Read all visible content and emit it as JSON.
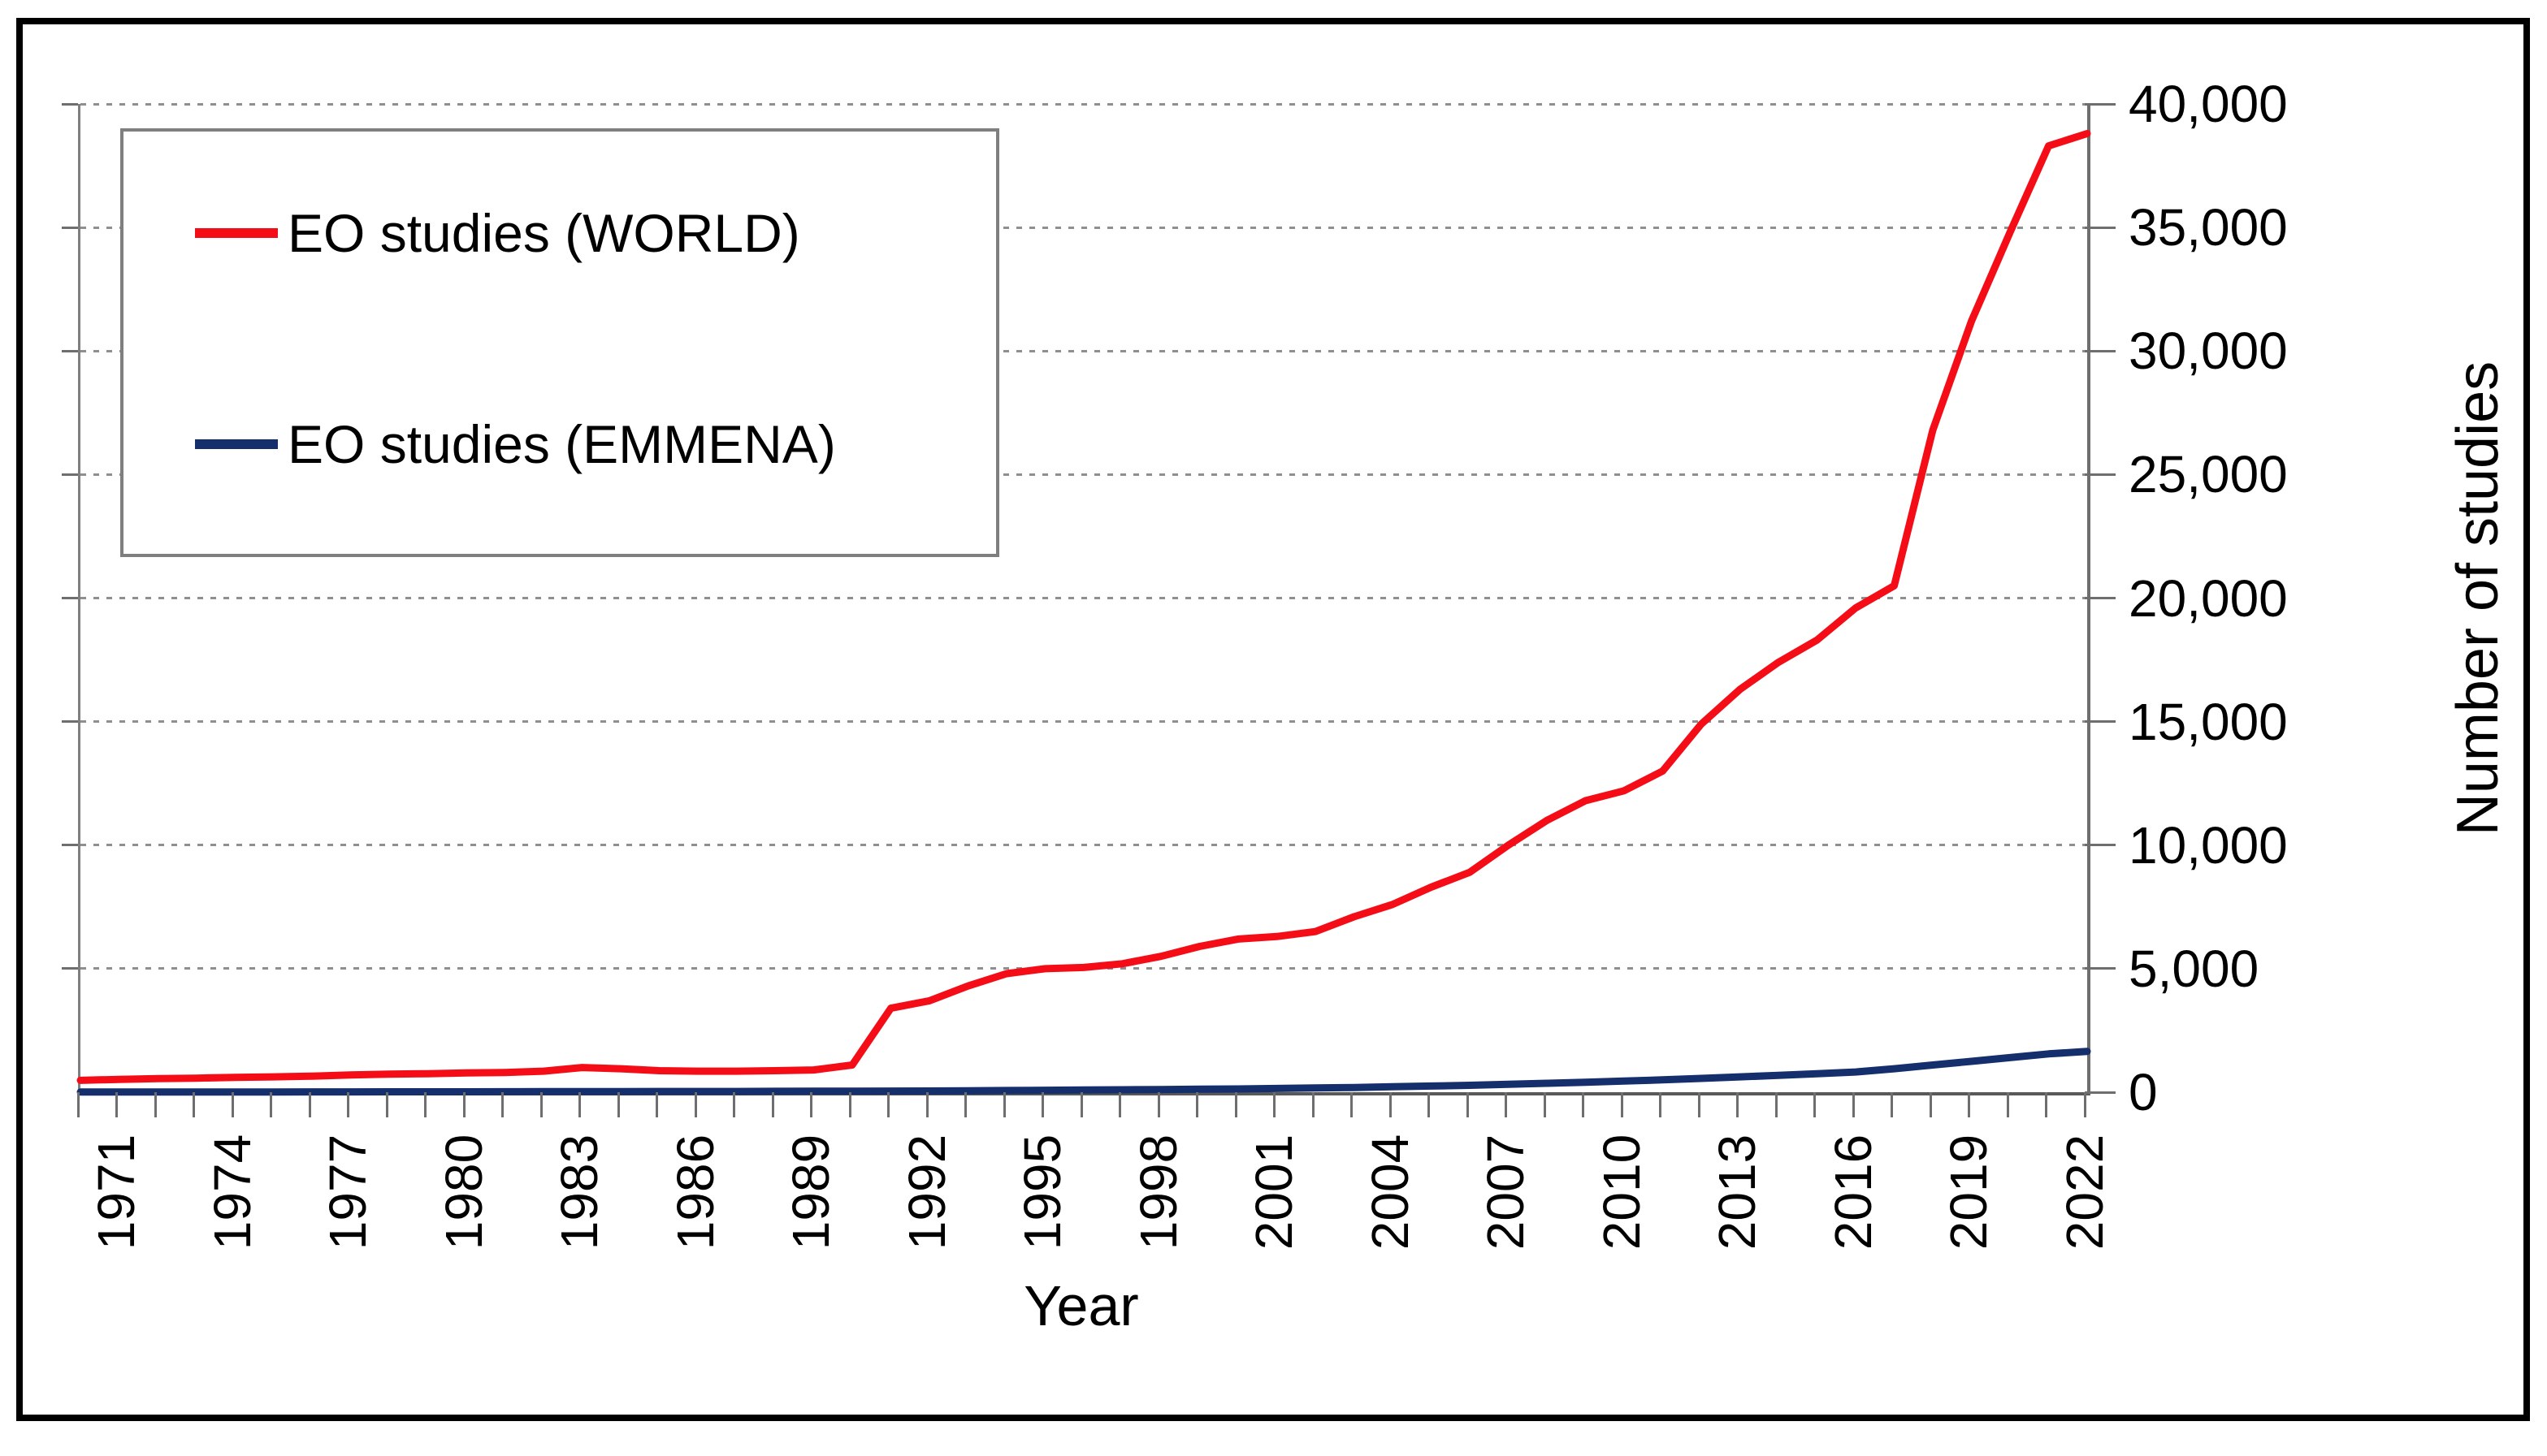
{
  "figure": {
    "background_color": "#ffffff",
    "frame_color": "#000000",
    "plot_border_color": "#7f7f7f",
    "axis_color": "#595959",
    "grid_color": "#8f8f8f",
    "legend": {
      "position": "top-left",
      "border_color": "#7f7f7f",
      "items": [
        {
          "label": "EO studies (WORLD)",
          "color": "#f40d17"
        },
        {
          "label": "EO studies (EMMENA)",
          "color": "#142f6b"
        }
      ]
    }
  },
  "chart_data": {
    "type": "line",
    "title": "",
    "xlabel": "Year",
    "ylabel": "Number of studies",
    "xlim": [
      1970,
      2022
    ],
    "ylim": [
      0,
      40000
    ],
    "grid": "horizontal-dashed",
    "legend_position": "top-left",
    "y_ticks": [
      0,
      5000,
      10000,
      15000,
      20000,
      25000,
      30000,
      35000,
      40000
    ],
    "y_tick_labels": [
      "0",
      "5,000",
      "10,000",
      "15,000",
      "20,000",
      "25,000",
      "30,000",
      "35,000",
      "40,000"
    ],
    "x_tick_labels": [
      1971,
      1974,
      1977,
      1980,
      1983,
      1986,
      1989,
      1992,
      1995,
      1998,
      2001,
      2004,
      2007,
      2010,
      2013,
      2016,
      2019,
      2022
    ],
    "x": [
      1970,
      1971,
      1972,
      1973,
      1974,
      1975,
      1976,
      1977,
      1978,
      1979,
      1980,
      1981,
      1982,
      1983,
      1984,
      1985,
      1986,
      1987,
      1988,
      1989,
      1990,
      1991,
      1992,
      1993,
      1994,
      1995,
      1996,
      1997,
      1998,
      1999,
      2000,
      2001,
      2002,
      2003,
      2004,
      2005,
      2006,
      2007,
      2008,
      2009,
      2010,
      2011,
      2012,
      2013,
      2014,
      2015,
      2016,
      2017,
      2018,
      2019,
      2020,
      2021,
      2022
    ],
    "series": [
      {
        "name": "EO studies (WORLD)",
        "color": "#f40d17",
        "stroke_width": 9,
        "values": [
          480,
          520,
          550,
          570,
          600,
          620,
          650,
          700,
          730,
          750,
          780,
          800,
          850,
          1000,
          950,
          870,
          850,
          850,
          870,
          900,
          1100,
          3400,
          3700,
          4300,
          4800,
          5000,
          5050,
          5200,
          5500,
          5900,
          6200,
          6300,
          6500,
          7100,
          7600,
          8300,
          8900,
          10000,
          11000,
          11800,
          12200,
          13000,
          14900,
          16300,
          17400,
          18300,
          19600,
          20500,
          26800,
          31200,
          34800,
          38300,
          38800
        ]
      },
      {
        "name": "EO studies (EMMENA)",
        "color": "#142f6b",
        "stroke_width": 9,
        "values": [
          5,
          6,
          8,
          8,
          10,
          10,
          12,
          12,
          15,
          15,
          18,
          20,
          22,
          25,
          25,
          28,
          30,
          30,
          35,
          38,
          40,
          45,
          50,
          60,
          70,
          80,
          90,
          100,
          110,
          120,
          130,
          150,
          170,
          190,
          220,
          250,
          280,
          320,
          360,
          400,
          450,
          500,
          560,
          620,
          680,
          750,
          820,
          950,
          1100,
          1250,
          1400,
          1550,
          1650
        ]
      }
    ]
  }
}
